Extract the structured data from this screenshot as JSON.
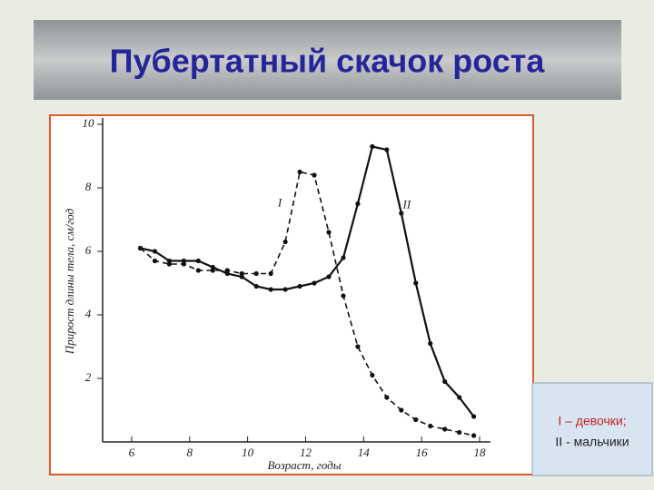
{
  "chart_data": {
    "type": "line",
    "title": "Пубертатный скачок роста",
    "xlabel": "Возраст, годы",
    "ylabel": "Прирост длины тела, см/год",
    "x": [
      6.3,
      6.8,
      7.3,
      7.8,
      8.3,
      8.8,
      9.3,
      9.8,
      10.3,
      10.8,
      11.3,
      11.8,
      12.3,
      12.8,
      13.3,
      13.8,
      14.3,
      14.8,
      15.3,
      15.8,
      16.3,
      16.8,
      17.3,
      17.8
    ],
    "series": [
      {
        "name": "I",
        "color": "#111111",
        "dashed": true,
        "values": [
          6.1,
          5.7,
          5.6,
          5.6,
          5.4,
          5.4,
          5.4,
          5.3,
          5.3,
          5.3,
          6.3,
          8.5,
          8.4,
          6.6,
          4.6,
          3.0,
          2.1,
          1.4,
          1.0,
          0.7,
          0.5,
          0.4,
          0.3,
          0.2
        ]
      },
      {
        "name": "II",
        "color": "#111111",
        "dashed": false,
        "values": [
          6.1,
          6.0,
          5.7,
          5.7,
          5.7,
          5.5,
          5.3,
          5.2,
          4.9,
          4.8,
          4.8,
          4.9,
          5.0,
          5.2,
          5.8,
          7.5,
          9.3,
          9.2,
          7.2,
          5.0,
          3.1,
          1.9,
          1.4,
          0.8
        ]
      }
    ],
    "legend": [
      "I – девочки;",
      "II - мальчики"
    ],
    "xlim": [
      5,
      18
    ],
    "xticks": [
      6,
      8,
      10,
      12,
      14,
      16,
      18
    ],
    "ylim": [
      0,
      10
    ],
    "yticks": [
      2,
      4,
      6,
      8,
      10
    ]
  }
}
